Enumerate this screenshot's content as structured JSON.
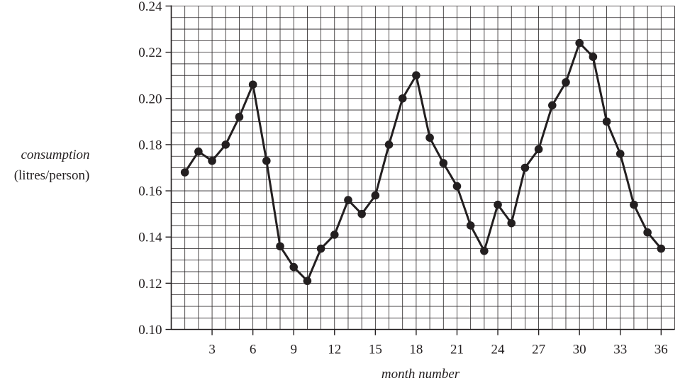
{
  "chart_data": {
    "type": "line",
    "title": "",
    "xlabel": "month number",
    "ylabel": "consumption",
    "ylabel_units": "(litres/person)",
    "xlim": [
      0,
      37
    ],
    "ylim": [
      0.1,
      0.24
    ],
    "x_ticks": [
      3,
      6,
      9,
      12,
      15,
      18,
      21,
      24,
      27,
      30,
      33,
      36
    ],
    "y_ticks": [
      "0.10",
      "0.12",
      "0.14",
      "0.16",
      "0.18",
      "0.20",
      "0.22",
      "0.24"
    ],
    "grid": true,
    "series": [
      {
        "x": [
          1,
          2,
          3,
          4,
          5,
          6,
          7,
          8,
          9,
          10,
          11,
          12,
          13,
          14,
          15,
          16,
          17,
          18,
          19,
          20,
          21,
          22,
          23,
          24,
          25,
          26,
          27,
          28,
          29,
          30,
          31,
          32,
          33,
          34,
          35,
          36
        ],
        "values": [
          0.168,
          0.177,
          0.173,
          0.18,
          0.192,
          0.206,
          0.173,
          0.136,
          0.127,
          0.121,
          0.135,
          0.141,
          0.156,
          0.15,
          0.158,
          0.18,
          0.2,
          0.21,
          0.183,
          0.172,
          0.162,
          0.145,
          0.134,
          0.154,
          0.146,
          0.17,
          0.178,
          0.197,
          0.207,
          0.224,
          0.218,
          0.19,
          0.176,
          0.154,
          0.142,
          0.135
        ],
        "color": "#231f20"
      }
    ]
  }
}
